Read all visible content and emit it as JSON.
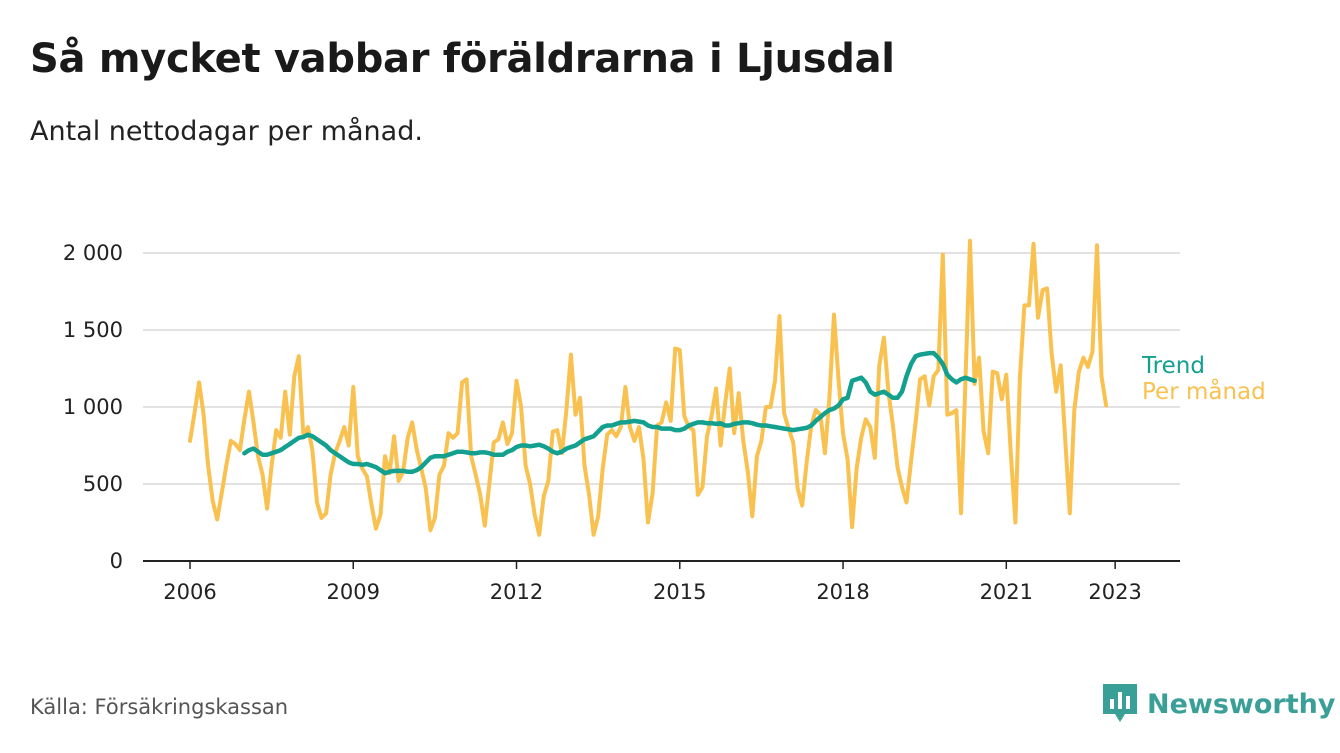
{
  "title": "Så mycket vabbar föräldrarna i Ljusdal",
  "subtitle": "Antal nettodagar per månad.",
  "source": "Källa: Försäkringskassan",
  "brand": "Newsworthy",
  "colors": {
    "monthly": "#f9c150",
    "trend": "#13a08e",
    "grid": "#d9d9d9",
    "axis": "#222222",
    "brand": "#3a9f97"
  },
  "chart_data": {
    "type": "line",
    "title": "Så mycket vabbar föräldrarna i Ljusdal",
    "subtitle": "Antal nettodagar per månad.",
    "xlabel": "",
    "ylabel": "",
    "ylim": [
      0,
      2000
    ],
    "yticks": [
      0,
      500,
      1000,
      1500,
      2000
    ],
    "ytick_labels": [
      "0",
      "500",
      "1 000",
      "1 500",
      "2 000"
    ],
    "xticks": [
      "2006",
      "2009",
      "2012",
      "2015",
      "2018",
      "2021",
      "2023"
    ],
    "grid": true,
    "legend": "inline-right",
    "series": [
      {
        "name": "Per månad",
        "color": "#f9c150",
        "start": "2006-01",
        "values": [
          780,
          960,
          1160,
          950,
          620,
          390,
          270,
          440,
          620,
          780,
          760,
          720,
          920,
          1100,
          900,
          680,
          560,
          340,
          620,
          850,
          800,
          1100,
          820,
          1200,
          1330,
          810,
          870,
          720,
          380,
          280,
          310,
          560,
          700,
          780,
          870,
          750,
          1130,
          680,
          600,
          550,
          370,
          210,
          300,
          680,
          570,
          810,
          520,
          580,
          800,
          900,
          720,
          600,
          470,
          200,
          280,
          560,
          620,
          830,
          800,
          830,
          1160,
          1180,
          680,
          560,
          430,
          230,
          500,
          770,
          790,
          900,
          760,
          830,
          1170,
          1000,
          620,
          500,
          300,
          170,
          420,
          520,
          840,
          850,
          700,
          980,
          1340,
          950,
          1060,
          620,
          430,
          170,
          290,
          600,
          820,
          850,
          810,
          870,
          1130,
          870,
          780,
          870,
          660,
          250,
          440,
          880,
          900,
          1030,
          910,
          1380,
          1370,
          940,
          870,
          850,
          430,
          480,
          810,
          940,
          1120,
          750,
          1020,
          1250,
          830,
          1090,
          780,
          580,
          290,
          680,
          780,
          1000,
          1000,
          1170,
          1590,
          960,
          860,
          770,
          470,
          360,
          650,
          880,
          980,
          950,
          700,
          1060,
          1600,
          1180,
          830,
          660,
          220,
          600,
          800,
          920,
          870,
          670,
          1270,
          1450,
          1100,
          880,
          610,
          480,
          380,
          650,
          900,
          1180,
          1200,
          1010,
          1200,
          1240,
          1990,
          950,
          960,
          980,
          310,
          1180,
          2080,
          1150,
          1320,
          840,
          700,
          1230,
          1220,
          1050,
          1210,
          700,
          250,
          1190,
          1660,
          1660,
          2060,
          1580,
          1760,
          1770,
          1350,
          1100,
          1270,
          780,
          310,
          980,
          1230,
          1320,
          1260,
          1360,
          2050,
          1200,
          1010
        ]
      },
      {
        "name": "Trend",
        "color": "#13a08e",
        "start": "2007-01",
        "values": [
          700,
          720,
          730,
          710,
          690,
          690,
          700,
          710,
          720,
          740,
          760,
          780,
          800,
          805,
          820,
          810,
          790,
          770,
          750,
          720,
          700,
          680,
          660,
          640,
          630,
          630,
          625,
          630,
          620,
          610,
          590,
          570,
          580,
          585,
          585,
          585,
          580,
          580,
          590,
          610,
          640,
          670,
          680,
          680,
          680,
          690,
          700,
          710,
          710,
          705,
          700,
          700,
          705,
          705,
          700,
          690,
          690,
          690,
          710,
          720,
          740,
          750,
          750,
          745,
          750,
          755,
          745,
          730,
          710,
          700,
          710,
          730,
          740,
          750,
          770,
          790,
          800,
          810,
          840,
          870,
          880,
          880,
          890,
          900,
          900,
          905,
          910,
          905,
          900,
          880,
          870,
          870,
          860,
          860,
          860,
          850,
          850,
          860,
          880,
          890,
          900,
          900,
          895,
          895,
          890,
          895,
          880,
          880,
          890,
          895,
          900,
          900,
          895,
          885,
          880,
          880,
          875,
          870,
          865,
          860,
          855,
          850,
          855,
          860,
          865,
          880,
          910,
          935,
          960,
          980,
          990,
          1010,
          1050,
          1060,
          1170,
          1180,
          1190,
          1160,
          1100,
          1080,
          1090,
          1100,
          1080,
          1060,
          1060,
          1100,
          1200,
          1280,
          1330,
          1340,
          1345,
          1350,
          1350,
          1320,
          1280,
          1210,
          1180,
          1160,
          1180,
          1190,
          1180,
          1170
        ]
      }
    ]
  }
}
